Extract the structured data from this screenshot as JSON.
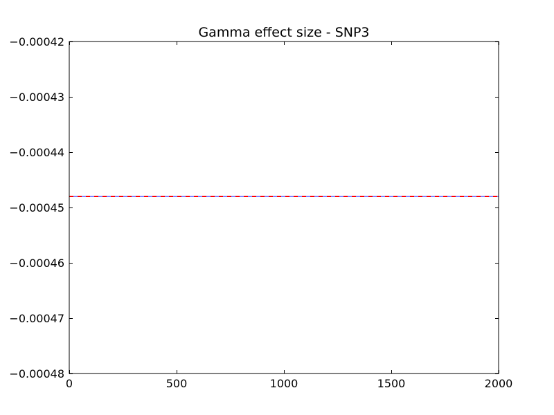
{
  "chart_data": {
    "type": "line",
    "title": "Gamma effect size - SNP3",
    "xlabel": "",
    "ylabel": "",
    "xlim": [
      0,
      2000
    ],
    "ylim": [
      -0.00048,
      -0.00042
    ],
    "x_ticks": [
      0,
      500,
      1000,
      1500,
      2000
    ],
    "x_tick_labels": [
      "0",
      "500",
      "1000",
      "1500",
      "2000"
    ],
    "y_ticks": [
      -0.00042,
      -0.00043,
      -0.00044,
      -0.00045,
      -0.00046,
      -0.00047,
      -0.00048
    ],
    "y_tick_labels": [
      "−0.00042",
      "−0.00043",
      "−0.00044",
      "−0.00045",
      "−0.00046",
      "−0.00047",
      "−0.00048"
    ],
    "grid": false,
    "series": [
      {
        "style": "solid",
        "color": "#0000ff",
        "x": [
          0,
          2000
        ],
        "y": [
          -0.000448,
          -0.000448
        ]
      },
      {
        "style": "dashed",
        "color": "#ff0000",
        "x": [
          0,
          2000
        ],
        "y": [
          -0.000448,
          -0.000448
        ]
      }
    ]
  }
}
